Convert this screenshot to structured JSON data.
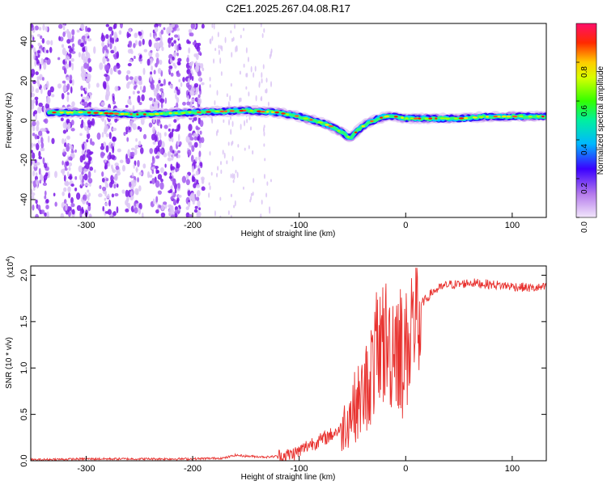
{
  "title": "C2E1.2025.267.04.08.R17",
  "chart_data": [
    {
      "type": "heatmap",
      "xlabel": "Height of straight line (km)",
      "ylabel": "Frequency (Hz)",
      "xlim": [
        -352,
        132
      ],
      "ylim": [
        -49,
        49
      ],
      "xticks": [
        -300,
        -200,
        -100,
        0,
        100
      ],
      "yticks": [
        -40,
        -20,
        0,
        20,
        40
      ],
      "colorbar": {
        "label": "Normalized spectral amplitude",
        "range": [
          0,
          1
        ],
        "ticks": [
          "0.0",
          "0.2",
          "0.4",
          "0.6",
          "0.8"
        ],
        "colormap": [
          "#e8d6f5",
          "#8a2be2",
          "#1a00ff",
          "#00ccff",
          "#00ff66",
          "#ffee00",
          "#ff2200",
          "#ff1493"
        ]
      },
      "ridge": {
        "description_points_x": [
          -335,
          -300,
          -250,
          -200,
          -150,
          -120,
          -100,
          -80,
          -70,
          -60,
          -52,
          -45,
          -35,
          -20,
          -10,
          0,
          20,
          50,
          80,
          110,
          132
        ],
        "description_points_y": [
          4,
          4,
          3,
          4,
          5,
          4,
          2,
          -1,
          -3,
          -6,
          -9,
          -5,
          -1,
          2,
          2,
          1,
          1,
          1,
          2,
          2,
          2
        ]
      },
      "noise_region_x": [
        -352,
        -190
      ]
    },
    {
      "type": "line",
      "xlabel": "Height of straight line (km)",
      "ylabel": "SNR (10 * v/v)",
      "yscale_label": "(x10",
      "yscale_exp": "4",
      "xlim": [
        -352,
        132
      ],
      "ylim": [
        0,
        2.1
      ],
      "xticks": [
        -300,
        -200,
        -100,
        0,
        100
      ],
      "yticks": [
        "0.0",
        "0.5",
        "1.0",
        "1.5",
        "2.0"
      ],
      "color": "#e8312e",
      "series_points_x": [
        -352,
        -300,
        -250,
        -200,
        -170,
        -160,
        -150,
        -130,
        -110,
        -100,
        -90,
        -80,
        -70,
        -60,
        -50,
        -40,
        -35,
        -30,
        -25,
        -20,
        -15,
        -10,
        -5,
        0,
        5,
        10,
        15,
        20,
        25,
        30,
        40,
        50,
        60,
        80,
        100,
        120,
        132
      ],
      "series_points_y": [
        0.01,
        0.02,
        0.02,
        0.02,
        0.03,
        0.06,
        0.05,
        0.04,
        0.06,
        0.1,
        0.18,
        0.22,
        0.28,
        0.35,
        0.55,
        0.7,
        0.85,
        1.05,
        1.25,
        1.3,
        1.2,
        1.35,
        1.25,
        1.15,
        1.45,
        1.6,
        1.7,
        1.75,
        1.82,
        1.85,
        1.9,
        1.9,
        1.92,
        1.9,
        1.88,
        1.86,
        1.87
      ]
    }
  ]
}
